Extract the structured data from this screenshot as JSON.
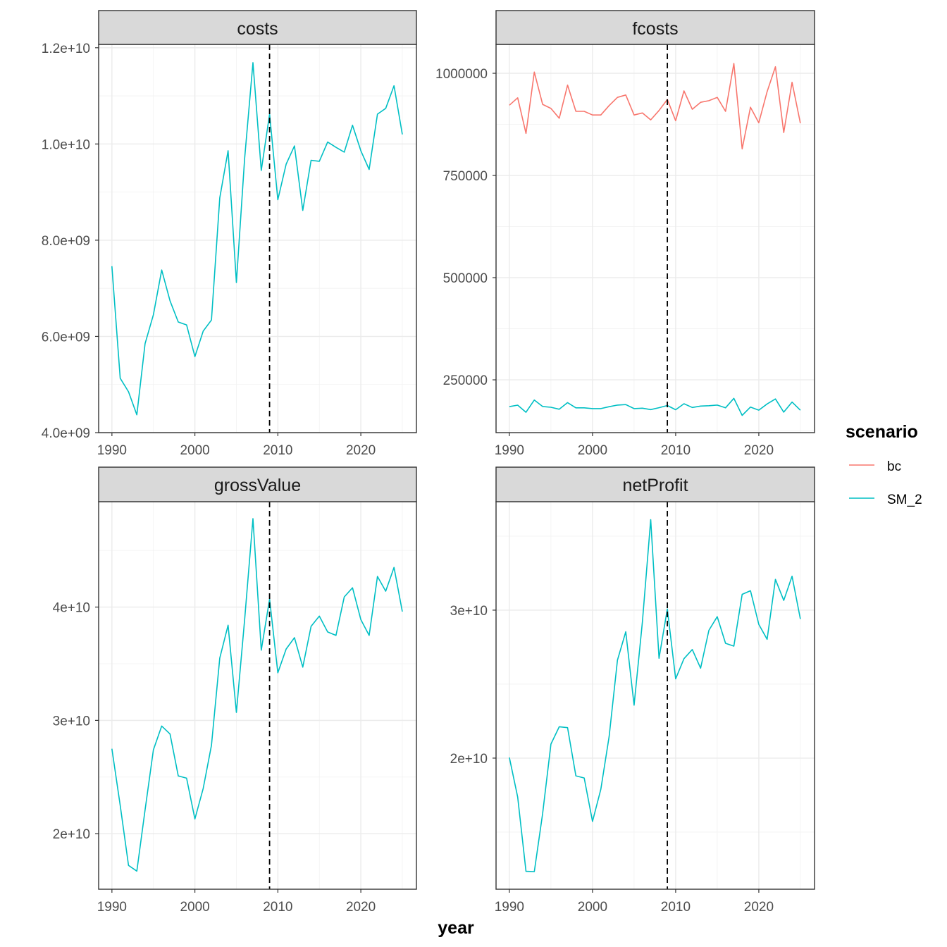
{
  "chart_data": {
    "type": "line",
    "facet_by": "variable",
    "xlabel": "year",
    "x": [
      1990,
      1991,
      1992,
      1993,
      1994,
      1995,
      1996,
      1997,
      1998,
      1999,
      2000,
      2001,
      2002,
      2003,
      2004,
      2005,
      2006,
      2007,
      2008,
      2009,
      2010,
      2011,
      2012,
      2013,
      2014,
      2015,
      2016,
      2017,
      2018,
      2019,
      2020,
      2021,
      2022,
      2023,
      2024,
      2025
    ],
    "xlim": [
      1988.4,
      2026.7
    ],
    "x_ticks": [
      1990,
      2000,
      2010,
      2020
    ],
    "x_tick_labels": [
      "1990",
      "2000",
      "2010",
      "2020"
    ],
    "vline": {
      "x": 2009,
      "style": "dashed",
      "color": "#000000"
    },
    "grid": true,
    "legend": {
      "title": "scenario",
      "position": "right",
      "entries": [
        {
          "name": "bc",
          "color": "#F8766D"
        },
        {
          "name": "SM_2",
          "color": "#00BFC4"
        }
      ]
    },
    "panels": [
      {
        "title": "costs",
        "ylim": [
          4000000000.0,
          12070000000.0
        ],
        "y_ticks": [
          4000000000.0,
          6000000000.0,
          8000000000.0,
          10000000000.0,
          12000000000.0
        ],
        "y_tick_labels": [
          "4.0e+09",
          "6.0e+09",
          "8.0e+09",
          "1.0e+10",
          "1.2e+10"
        ],
        "y_minor": [
          5000000000.0,
          7000000000.0,
          9000000000.0,
          11000000000.0
        ],
        "series": [
          {
            "name": "SM_2",
            "values": [
              7460000000.0,
              5130000000.0,
              4850000000.0,
              4370000000.0,
              5850000000.0,
              6450000000.0,
              7380000000.0,
              6740000000.0,
              6300000000.0,
              6240000000.0,
              5580000000.0,
              6110000000.0,
              6340000000.0,
              8880000000.0,
              9860000000.0,
              7120000000.0,
              9700000000.0,
              11690000000.0,
              9450000000.0,
              10620000000.0,
              8840000000.0,
              9580000000.0,
              9960000000.0,
              8620000000.0,
              9660000000.0,
              9640000000.0,
              10040000000.0,
              9930000000.0,
              9830000000.0,
              10390000000.0,
              9860000000.0,
              9470000000.0,
              10620000000.0,
              10740000000.0,
              11210000000.0,
              10200000000.0
            ]
          }
        ]
      },
      {
        "title": "fcosts",
        "ylim": [
          120800,
          1070700
        ],
        "y_ticks": [
          250000,
          500000,
          750000,
          1000000
        ],
        "y_tick_labels": [
          "250000",
          "500000",
          "750000",
          "1000000"
        ],
        "y_minor": [
          125000,
          375000,
          625000,
          875000
        ],
        "series": [
          {
            "name": "bc",
            "values": [
              922000,
              940000,
              853000,
              1003000,
              924000,
              914000,
              890000,
              971000,
              907000,
              907000,
              898000,
              898000,
              921000,
              941000,
              947000,
              898000,
              903000,
              886000,
              909000,
              936000,
              884000,
              957000,
              912000,
              929000,
              933000,
              941000,
              907000,
              1024000,
              815000,
              917000,
              879000,
              955000,
              1016000,
              855000,
              978000,
              878000
            ]
          },
          {
            "name": "SM_2",
            "values": [
              184400,
              188000,
              170600,
              200600,
              184800,
              182800,
              178000,
              194200,
              181400,
              181400,
              179600,
              179600,
              184200,
              188200,
              189400,
              179600,
              180600,
              177200,
              181800,
              187200,
              176800,
              191400,
              182400,
              185800,
              186600,
              188200,
              181400,
              204800,
              163000,
              183400,
              175800,
              191000,
              203200,
              171000,
              195600,
              175600
            ]
          }
        ]
      },
      {
        "title": "grossValue",
        "ylim": [
          15100000000.0,
          49300000000.0
        ],
        "y_ticks": [
          20000000000.0,
          30000000000.0,
          40000000000.0
        ],
        "y_tick_labels": [
          "2e+10",
          "3e+10",
          "4e+10"
        ],
        "y_minor": [
          25000000000.0,
          35000000000.0,
          45000000000.0
        ],
        "series": [
          {
            "name": "SM_2",
            "values": [
              27500000000.0,
              22500000000.0,
              17200000000.0,
              16700000000.0,
              22100000000.0,
              27400000000.0,
              29500000000.0,
              28800000000.0,
              25100000000.0,
              24900000000.0,
              21300000000.0,
              24000000000.0,
              27800000000.0,
              35500000000.0,
              38400000000.0,
              30700000000.0,
              38900000000.0,
              47800000000.0,
              36200000000.0,
              40700000000.0,
              34200000000.0,
              36300000000.0,
              37300000000.0,
              34700000000.0,
              38300000000.0,
              39200000000.0,
              37800000000.0,
              37500000000.0,
              40900000000.0,
              41700000000.0,
              38900000000.0,
              37500000000.0,
              42700000000.0,
              41400000000.0,
              43500000000.0,
              39600000000.0
            ]
          }
        ]
      },
      {
        "title": "netProfit",
        "ylim": [
          11140000000.0,
          37330000000.0
        ],
        "y_ticks": [
          20000000000.0,
          30000000000.0
        ],
        "y_tick_labels": [
          "2e+10",
          "3e+10"
        ],
        "y_minor": [
          15000000000.0,
          25000000000.0,
          35000000000.0
        ],
        "series": [
          {
            "name": "SM_2",
            "values": [
              20040000000.0,
              17370000000.0,
              12350000000.0,
              12330000000.0,
              16250000000.0,
              20950000000.0,
              22120000000.0,
              22060000000.0,
              18800000000.0,
              18660000000.0,
              15720000000.0,
              17890000000.0,
              21460000000.0,
              26620000000.0,
              28540000000.0,
              23580000000.0,
              29200000000.0,
              36110000000.0,
              26750000000.0,
              30080000000.0,
              25360000000.0,
              26720000000.0,
              27340000000.0,
              26080000000.0,
              28640000000.0,
              29560000000.0,
              27760000000.0,
              27570000000.0,
              31070000000.0,
              31310000000.0,
              29040000000.0,
              28030000000.0,
              32080000000.0,
              30660000000.0,
              32290000000.0,
              29400000000.0
            ]
          }
        ]
      }
    ]
  }
}
